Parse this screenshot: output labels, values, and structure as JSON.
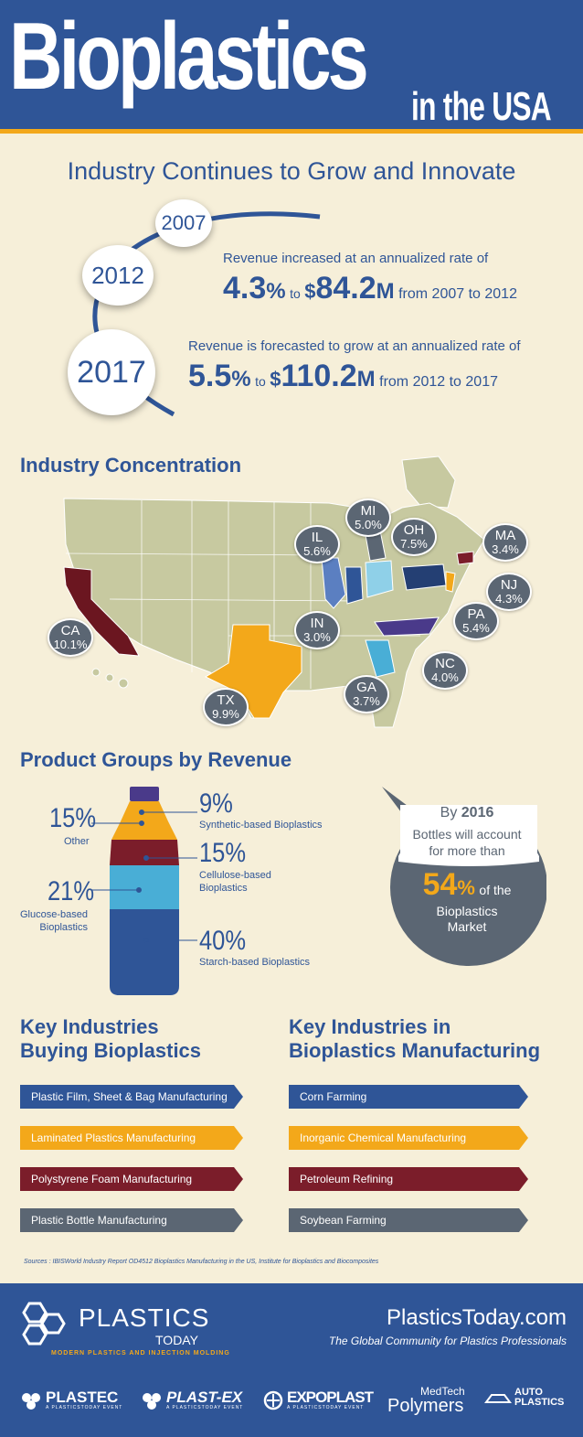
{
  "header": {
    "title": "Bioplastics",
    "title_suffix": "in the USA"
  },
  "subtitle": "Industry Continues to Grow and Innovate",
  "timeline": {
    "years": [
      "2007",
      "2012",
      "2017"
    ],
    "revenue_2012": {
      "intro": "Revenue increased at an annualized rate of",
      "rate": "4.3",
      "pct": "%",
      "to": "to",
      "dollar": "$",
      "amount": "84.2",
      "unit": "M",
      "period": "from 2007 to 2012"
    },
    "revenue_2017": {
      "intro": "Revenue is forecasted to grow at an annualized rate of",
      "rate": "5.5",
      "pct": "%",
      "to": "to",
      "dollar": "$",
      "amount": "110.2",
      "unit": "M",
      "period": "from 2012 to 2017"
    }
  },
  "industry_concentration": {
    "title": "Industry Concentration",
    "states": [
      {
        "code": "CA",
        "value": "10.1",
        "color": "#6b1620"
      },
      {
        "code": "TX",
        "value": "9.9",
        "color": "#f3a81a"
      },
      {
        "code": "IL",
        "value": "5.6",
        "color": "#5b7fc1"
      },
      {
        "code": "IN",
        "value": "3.0",
        "color": "#2f5597"
      },
      {
        "code": "MI",
        "value": "5.0",
        "color": "#5b6673"
      },
      {
        "code": "OH",
        "value": "7.5",
        "color": "#8fd0e8"
      },
      {
        "code": "GA",
        "value": "3.7",
        "color": "#49aed6"
      },
      {
        "code": "NC",
        "value": "4.0",
        "color": "#4a3a8a"
      },
      {
        "code": "PA",
        "value": "5.4",
        "color": "#243f73"
      },
      {
        "code": "NJ",
        "value": "4.3",
        "color": "#f3a81a"
      },
      {
        "code": "MA",
        "value": "3.4",
        "color": "#7b1d2a"
      }
    ],
    "pct_sign": "%"
  },
  "product_groups": {
    "title": "Product Groups by Revenue",
    "items": [
      {
        "value": "9",
        "label": "Synthetic-based Bioplastics",
        "color": "#f3a81a"
      },
      {
        "value": "15",
        "label": "Cellulose-based Bioplastics",
        "color": "#7b1d2a"
      },
      {
        "value": "40",
        "label": "Starch-based Bioplastics",
        "color": "#2f5597"
      },
      {
        "value": "15",
        "label": "Other",
        "color": "#5b4fa0"
      },
      {
        "value": "21",
        "label": "Glucose-based Bioplastics",
        "color": "#49aed6"
      }
    ],
    "pct_sign": "%",
    "callout": {
      "by": "By",
      "year": "2016",
      "line2": "Bottles will account",
      "line3": "for more than",
      "value": "54",
      "pct": "%",
      "of_the": "of the",
      "line5": "Bioplastics",
      "line6": "Market"
    }
  },
  "key_buying": {
    "title_line1": "Key Industries",
    "title_line2": "Buying Bioplastics",
    "items": [
      {
        "label": "Plastic Film, Sheet & Bag Manufacturing",
        "color": "#2f5597"
      },
      {
        "label": "Laminated Plastics Manufacturing",
        "color": "#f3a81a"
      },
      {
        "label": "Polystyrene Foam Manufacturing",
        "color": "#7b1d2a"
      },
      {
        "label": "Plastic Bottle Manufacturing",
        "color": "#5b6673"
      }
    ]
  },
  "key_manufacturing": {
    "title_line1": "Key Industries in",
    "title_line2": "Bioplastics Manufacturing",
    "items": [
      {
        "label": "Corn Farming",
        "color": "#2f5597"
      },
      {
        "label": "Inorganic Chemical Manufacturing",
        "color": "#f3a81a"
      },
      {
        "label": "Petroleum Refining",
        "color": "#7b1d2a"
      },
      {
        "label": "Soybean Farming",
        "color": "#5b6673"
      }
    ]
  },
  "sources": "Sources : IBISWorld Industry Report OD4512 Bioplastics Manufacturing in the US, Institute for Bioplastics and Biocomposites",
  "footer": {
    "brand": "PLASTICS",
    "brand_sub": "TODAY",
    "tagline_small": "MODERN PLASTICS AND INJECTION MOLDING",
    "site": "PlasticsToday.com",
    "slogan": "The Global Community for Plastics Professionals",
    "events": [
      {
        "name": "PLASTEC",
        "sub": "A PLASTICSTODAY EVENT"
      },
      {
        "name": "PLAST-EX",
        "sub": "A PLASTICSTODAY EVENT"
      },
      {
        "name": "EXPOPLAST",
        "sub": "A PLASTICSTODAY EVENT"
      },
      {
        "name": "MedTech",
        "name2": "Polymers"
      },
      {
        "name": "AUTO",
        "name2": "PLASTICS"
      }
    ]
  }
}
